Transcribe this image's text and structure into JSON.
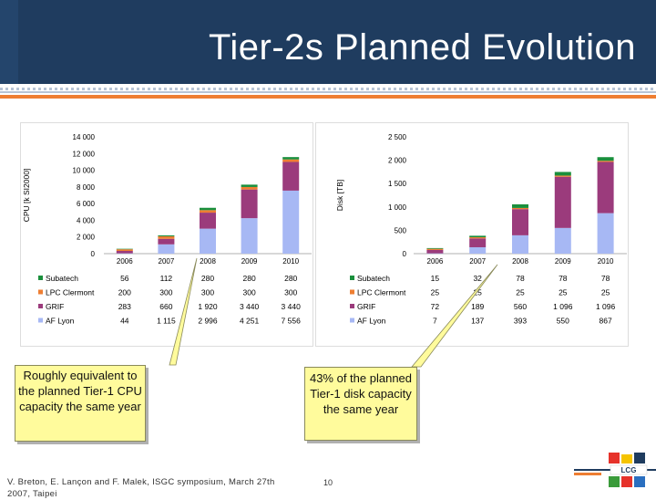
{
  "header": {
    "title": "Tier-2s Planned Evolution"
  },
  "chart_data": [
    {
      "type": "bar",
      "stacked": true,
      "ylabel": "CPU [k SI2000]",
      "ylim": [
        0,
        14000
      ],
      "yticks": [
        "14 000",
        "12 000",
        "10 000",
        "8 000",
        "6 000",
        "4 000",
        "2 000",
        "0"
      ],
      "categories": [
        "2006",
        "2007",
        "2008",
        "2009",
        "2010"
      ],
      "series": [
        {
          "name": "AF Lyon",
          "color": "#a7b8f4",
          "values": [
            44,
            1115,
            2996,
            4251,
            7556
          ],
          "labels": [
            "44",
            "1 115",
            "2 996",
            "4 251",
            "7 556"
          ]
        },
        {
          "name": "GRIF",
          "color": "#9b3b7c",
          "values": [
            283,
            660,
            1920,
            3440,
            3440
          ],
          "labels": [
            "283",
            "660",
            "1 920",
            "3 440",
            "3 440"
          ]
        },
        {
          "name": "LPC Clermont",
          "color": "#ee7e32",
          "values": [
            200,
            300,
            300,
            300,
            300
          ],
          "labels": [
            "200",
            "300",
            "300",
            "300",
            "300"
          ]
        },
        {
          "name": "Subatech",
          "color": "#1a8f3c",
          "values": [
            56,
            112,
            280,
            280,
            280
          ],
          "labels": [
            "56",
            "112",
            "280",
            "280",
            "280"
          ]
        }
      ],
      "legend": "table-below"
    },
    {
      "type": "bar",
      "stacked": true,
      "ylabel": "Disk [TB]",
      "ylim": [
        0,
        2500
      ],
      "yticks": [
        "2 500",
        "2 000",
        "1 500",
        "1 000",
        "500",
        "0"
      ],
      "categories": [
        "2006",
        "2007",
        "2008",
        "2009",
        "2010"
      ],
      "series": [
        {
          "name": "AF Lyon",
          "color": "#a7b8f4",
          "values": [
            7,
            137,
            393,
            550,
            867
          ],
          "labels": [
            "7",
            "137",
            "393",
            "550",
            "867"
          ]
        },
        {
          "name": "GRIF",
          "color": "#9b3b7c",
          "values": [
            72,
            189,
            560,
            1096,
            1096
          ],
          "labels": [
            "72",
            "189",
            "560",
            "1 096",
            "1 096"
          ]
        },
        {
          "name": "LPC Clermont",
          "color": "#ee7e32",
          "values": [
            25,
            25,
            25,
            25,
            25
          ],
          "labels": [
            "25",
            "25",
            "25",
            "25",
            "25"
          ]
        },
        {
          "name": "Subatech",
          "color": "#1a8f3c",
          "values": [
            15,
            32,
            78,
            78,
            78
          ],
          "labels": [
            "15",
            "32",
            "78",
            "78",
            "78"
          ]
        }
      ],
      "legend": "table-below"
    }
  ],
  "callouts": {
    "cpu": "Roughly equivalent to the planned Tier-1 CPU capacity the same year",
    "disk": "43% of the planned Tier-1 disk capacity the same year"
  },
  "footer": {
    "text": "V. Breton, E. Lançon and F. Malek, ISGC symposium, March 27th 2007, Taipei",
    "page": "10"
  }
}
